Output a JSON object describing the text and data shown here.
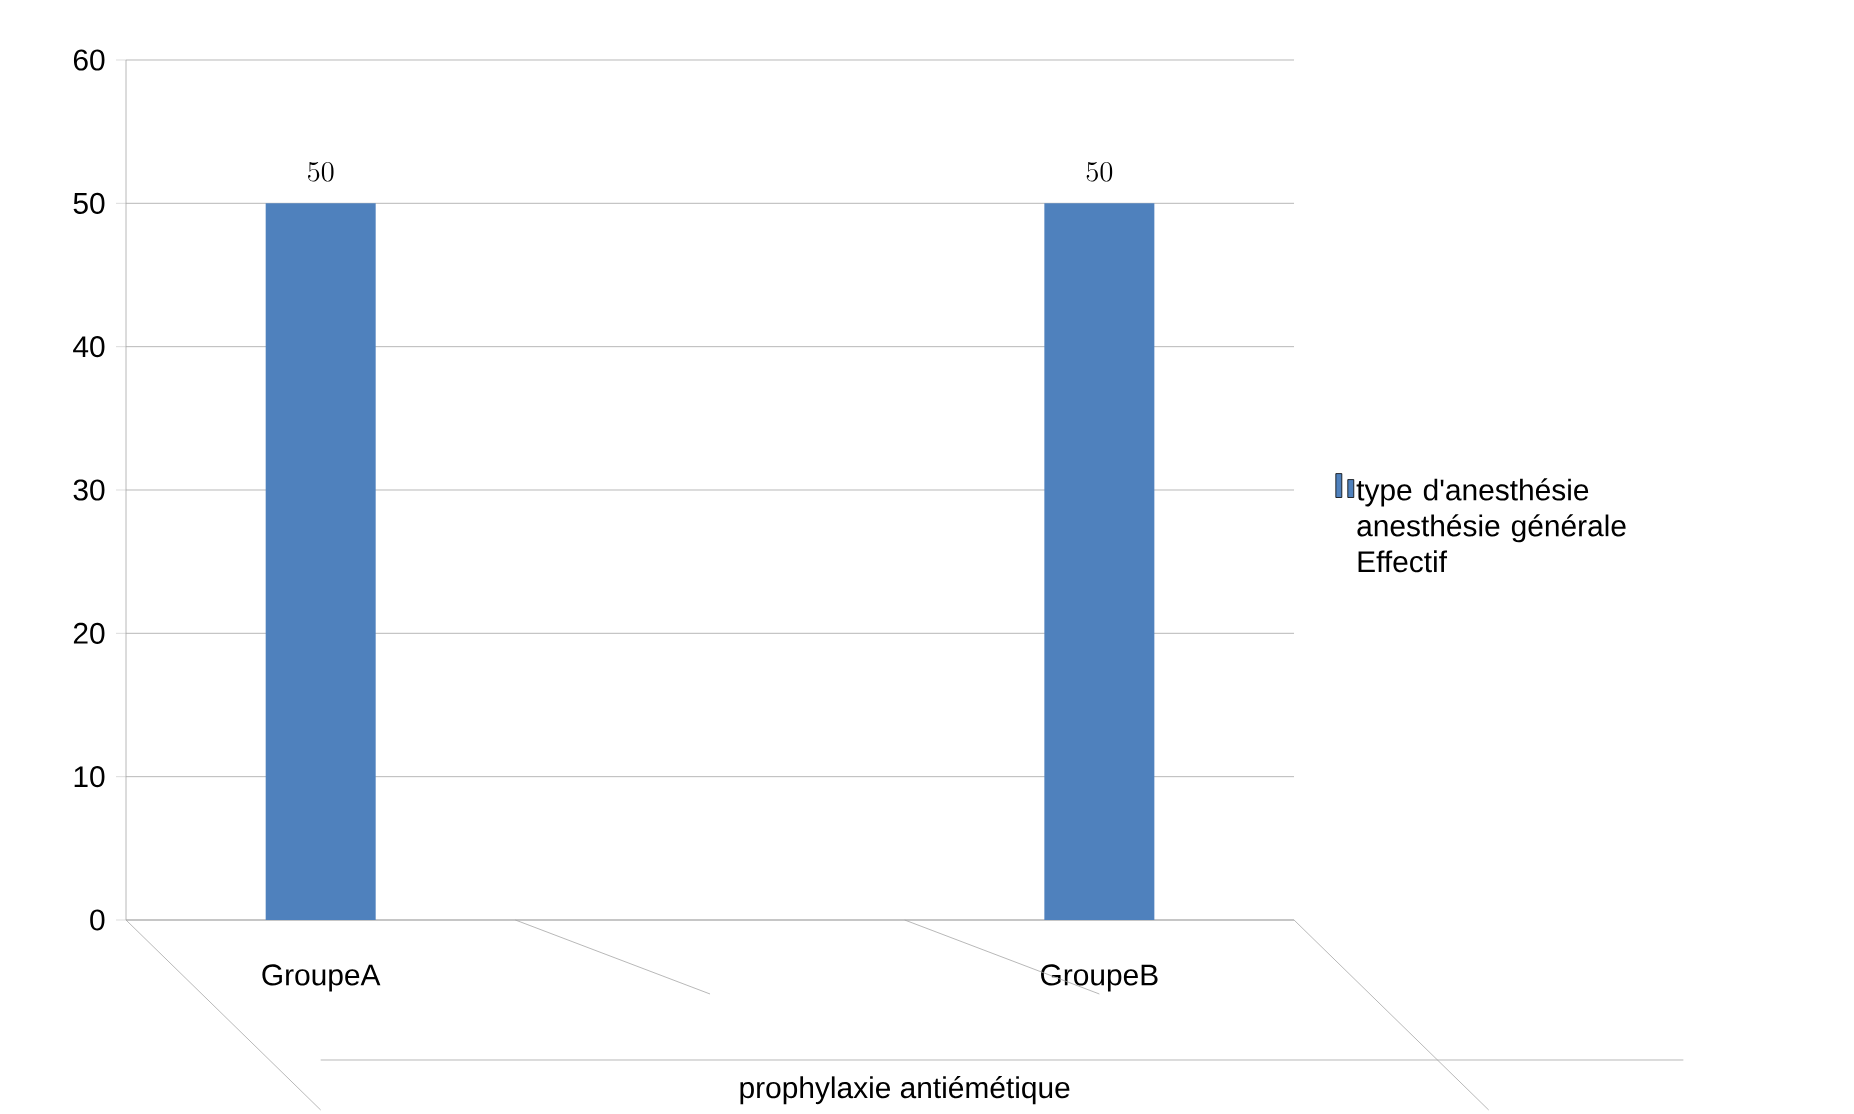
{
  "chart_data": {
    "type": "bar",
    "xlabel": "prophylaxie antiémétique",
    "categories": [
      "GroupeA",
      null,
      "GroupeB"
    ],
    "series": [
      {
        "name": "type d'anesthésie anesthésie générale Effectif",
        "color": "#4f81bd",
        "values": [
          50,
          null,
          50
        ]
      }
    ],
    "ylim": [
      0,
      60
    ],
    "yticks": [
      0,
      10,
      20,
      30,
      40,
      50,
      60
    ],
    "grid": "y",
    "legend": "right",
    "data_labels": true
  }
}
